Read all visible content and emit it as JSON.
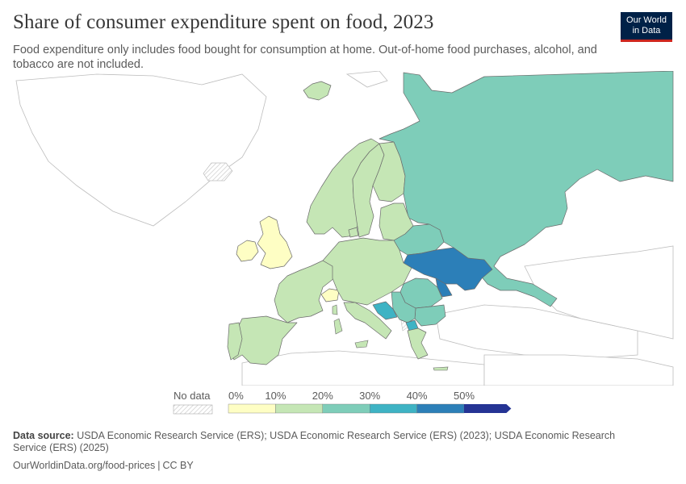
{
  "header": {
    "title": "Share of consumer expenditure spent on food, 2023",
    "subtitle": "Food expenditure only includes food bought for consumption at home. Out-of-home food purchases, alcohol, and tobacco are not included."
  },
  "logo": {
    "line1": "Our World",
    "line2": "in Data",
    "bg_color": "#002147",
    "accent_color": "#ce261e"
  },
  "legend": {
    "no_data_label": "No data",
    "bins": [
      {
        "from": 0,
        "to": 10,
        "color": "#fefec4"
      },
      {
        "from": 10,
        "to": 20,
        "color": "#c5e6b5"
      },
      {
        "from": 20,
        "to": 30,
        "color": "#7ecdb9"
      },
      {
        "from": 30,
        "to": 40,
        "color": "#3eb3c4"
      },
      {
        "from": 40,
        "to": 50,
        "color": "#2c7fb8"
      },
      {
        "from": 50,
        "to": null,
        "color": "#253494"
      }
    ],
    "tick_labels": [
      "0%",
      "10%",
      "20%",
      "30%",
      "40%",
      "50%"
    ]
  },
  "regions": [
    {
      "name": "Iceland",
      "bin": 1
    },
    {
      "name": "United Kingdom",
      "bin": 0
    },
    {
      "name": "Ireland",
      "bin": 0
    },
    {
      "name": "Norway",
      "bin": 1
    },
    {
      "name": "Sweden",
      "bin": 1
    },
    {
      "name": "Finland",
      "bin": 1
    },
    {
      "name": "Russia",
      "bin": 2
    },
    {
      "name": "Baltic states",
      "bin": 1
    },
    {
      "name": "Belarus",
      "bin": 2
    },
    {
      "name": "Ukraine",
      "bin": 4
    },
    {
      "name": "Moldova",
      "bin": 4
    },
    {
      "name": "Romania",
      "bin": 2
    },
    {
      "name": "Bulgaria",
      "bin": 2
    },
    {
      "name": "Serbia",
      "bin": 2
    },
    {
      "name": "Bosnia and Herzegovina",
      "bin": 3
    },
    {
      "name": "North Macedonia",
      "bin": 3
    },
    {
      "name": "France",
      "bin": 1
    },
    {
      "name": "Spain",
      "bin": 1
    },
    {
      "name": "Portugal",
      "bin": 1
    },
    {
      "name": "Switzerland",
      "bin": 0
    },
    {
      "name": "Central Europe",
      "bin": 1
    },
    {
      "name": "Italy",
      "bin": 1
    },
    {
      "name": "Greece",
      "bin": 1
    },
    {
      "name": "Denmark",
      "bin": 1
    }
  ],
  "source": {
    "label": "Data source:",
    "text": "USDA Economic Research Service (ERS); USDA Economic Research Service (ERS) (2023); USDA Economic Research Service (ERS) (2025)"
  },
  "footer": {
    "url": "OurWorldinData.org/food-prices",
    "separator": "|",
    "license": "CC BY"
  }
}
